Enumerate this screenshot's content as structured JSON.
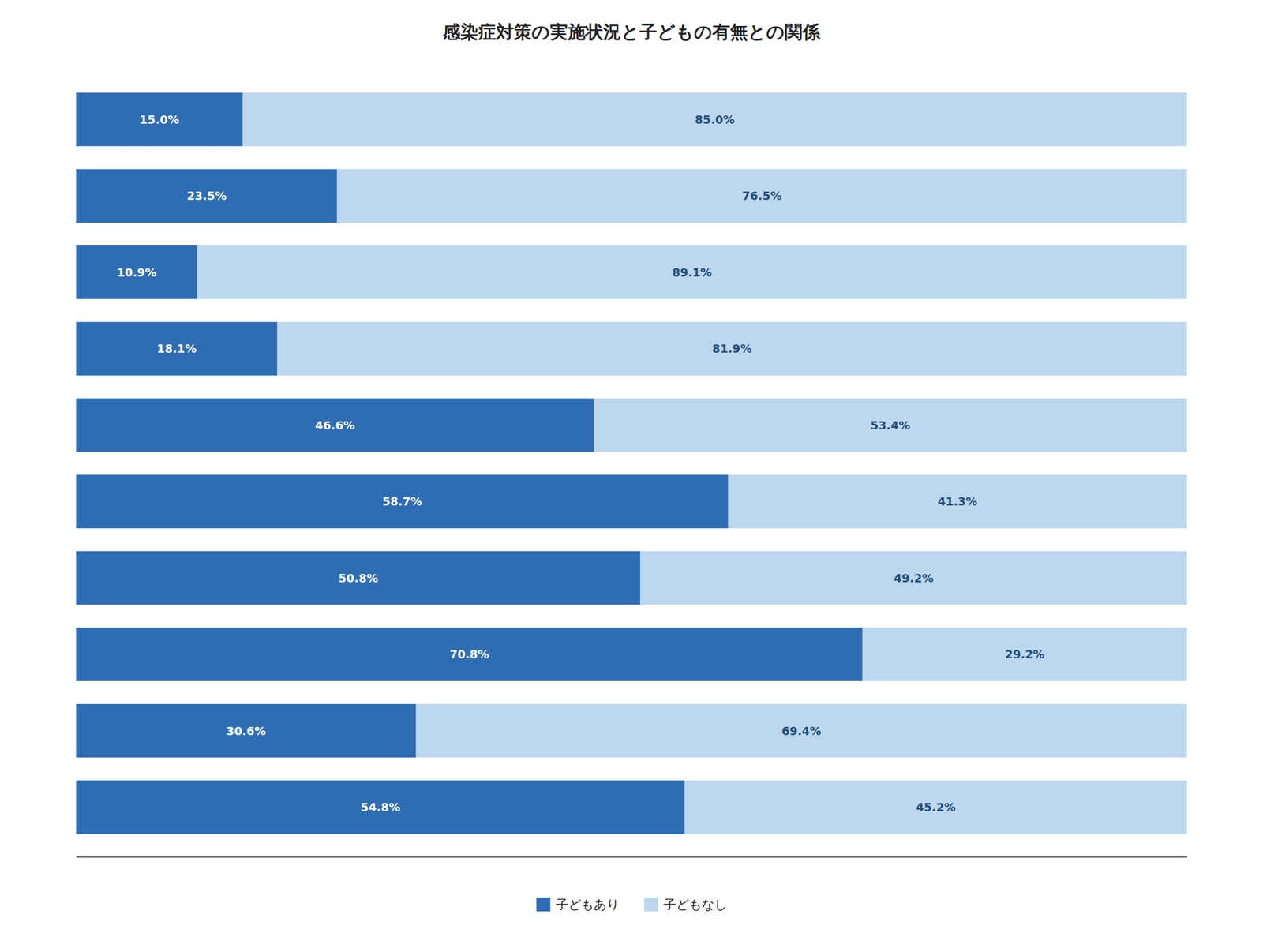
{
  "chart_data": {
    "type": "bar",
    "title": "感染症対策の実施状況と子どもの有無との関係",
    "orientation": "horizontal",
    "stacked": true,
    "data_labels": true,
    "tick_labels": false,
    "grid": false,
    "legend": "bottom",
    "categories": [
      null,
      null,
      null,
      null,
      null,
      null,
      null,
      null,
      null,
      null
    ],
    "xlim": [
      0,
      100
    ],
    "series": [
      {
        "name": "子どもあり",
        "color": "#2E6DB4",
        "values": [
          15.0,
          23.5,
          10.9,
          18.1,
          46.6,
          58.7,
          50.8,
          70.8,
          30.6,
          54.8
        ],
        "value_labels": [
          "15.0%",
          "23.5%",
          "10.9%",
          "18.1%",
          "46.6%",
          "58.7%",
          "50.8%",
          "70.8%",
          "30.6%",
          "54.8%"
        ]
      },
      {
        "name": "子どもなし",
        "color": "#BDD7EE",
        "values": [
          85.0,
          76.5,
          89.1,
          81.9,
          53.4,
          41.3,
          49.2,
          29.2,
          69.4,
          45.2
        ],
        "value_labels": [
          "85.0%",
          "76.5%",
          "89.1%",
          "81.9%",
          "53.4%",
          "41.3%",
          "49.2%",
          "29.2%",
          "69.4%",
          "45.2%"
        ]
      }
    ]
  }
}
